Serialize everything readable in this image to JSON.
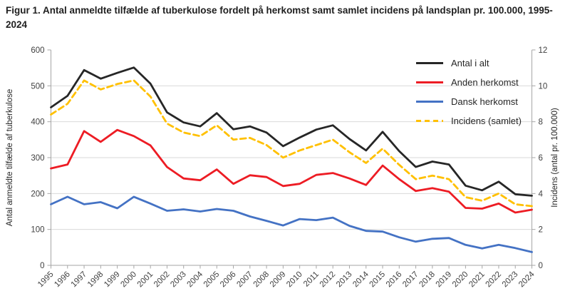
{
  "title": "Figur 1. Antal anmeldte tilfælde af tuberkulose fordelt på herkomst samt samlet incidens på landsplan pr. 100.000, 1995-2024",
  "chart_data": {
    "type": "line",
    "x": [
      1995,
      1996,
      1997,
      1998,
      1999,
      2000,
      2001,
      2002,
      2003,
      2004,
      2005,
      2006,
      2007,
      2008,
      2009,
      2010,
      2011,
      2012,
      2013,
      2014,
      2015,
      2016,
      2017,
      2018,
      2019,
      2020,
      2021,
      2022,
      2023,
      2024
    ],
    "series": [
      {
        "name": "Antal i alt",
        "axis": "left",
        "color": "#262626",
        "dash": null,
        "values": [
          440,
          472,
          544,
          520,
          536,
          551,
          506,
          426,
          398,
          387,
          424,
          379,
          387,
          370,
          332,
          356,
          378,
          390,
          352,
          320,
          372,
          318,
          274,
          289,
          281,
          222,
          209,
          233,
          198,
          194
        ]
      },
      {
        "name": "Anden herkomst",
        "axis": "left",
        "color": "#ed1c24",
        "dash": null,
        "values": [
          270,
          281,
          374,
          344,
          377,
          360,
          334,
          274,
          242,
          237,
          267,
          227,
          251,
          246,
          221,
          227,
          252,
          257,
          242,
          224,
          278,
          240,
          207,
          215,
          205,
          160,
          158,
          172,
          147,
          155
        ]
      },
      {
        "name": "Dansk herkomst",
        "axis": "left",
        "color": "#4472c4",
        "dash": null,
        "values": [
          170,
          191,
          170,
          176,
          159,
          191,
          172,
          152,
          156,
          150,
          157,
          152,
          136,
          124,
          111,
          129,
          126,
          133,
          110,
          96,
          94,
          78,
          66,
          74,
          76,
          57,
          47,
          57,
          48,
          37
        ]
      },
      {
        "name": "Incidens (samlet)",
        "axis": "right",
        "color": "#ffc000",
        "dash": "8 5",
        "values": [
          8.4,
          9.0,
          10.3,
          9.8,
          10.1,
          10.3,
          9.4,
          7.9,
          7.4,
          7.2,
          7.8,
          7.0,
          7.1,
          6.7,
          6.0,
          6.4,
          6.7,
          7.0,
          6.3,
          5.7,
          6.5,
          5.6,
          4.8,
          5.0,
          4.8,
          3.8,
          3.6,
          4.0,
          3.4,
          3.3
        ]
      }
    ],
    "ylabel_left": "Antal anmeldte tilfælde af tuberkulose",
    "ylabel_right": "Incidens (antal pr. 100.000)",
    "ylim_left": [
      0,
      600
    ],
    "yticks_left": [
      0,
      100,
      200,
      300,
      400,
      500,
      600
    ],
    "ylim_right": [
      0,
      12
    ],
    "yticks_right": [
      0,
      2,
      4,
      6,
      8,
      10,
      12
    ],
    "grid": true,
    "legend_position": "top-right"
  }
}
